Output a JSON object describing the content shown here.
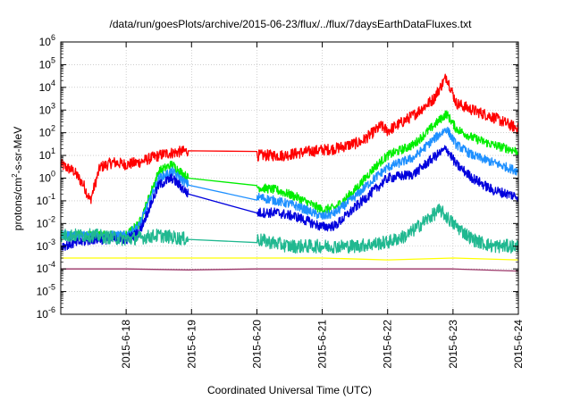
{
  "chart_data": {
    "type": "line",
    "title": "/data/run/goesPlots/archive/2015-06-23/flux/../flux/7daysEarthDataFluxes.txt",
    "xlabel": "Coordinated Universal Time (UTC)",
    "ylabel_parts": [
      "protons/cm",
      "2",
      "-s-sr-MeV"
    ],
    "x_unit": "days since 2015-06-17 00:00 UTC",
    "xlim": [
      0,
      7
    ],
    "x_ticks": [
      {
        "x": 1,
        "label": "2015-6-18"
      },
      {
        "x": 2,
        "label": "2015-6-19"
      },
      {
        "x": 3,
        "label": "2015-6-20"
      },
      {
        "x": 4,
        "label": "2015-6-21"
      },
      {
        "x": 5,
        "label": "2015-6-22"
      },
      {
        "x": 6,
        "label": "2015-6-23"
      },
      {
        "x": 7,
        "label": "2015-6-24"
      }
    ],
    "y_scale": "log",
    "ylim_exp": [
      -6,
      6
    ],
    "y_tick_exponents": [
      -6,
      -5,
      -4,
      -3,
      -2,
      -1,
      0,
      1,
      2,
      3,
      4,
      5,
      6
    ],
    "y_tick_base": "10",
    "grid": true,
    "legend": "none",
    "series": [
      {
        "color": "#ff0000",
        "noise": 0.25,
        "x": [
          0.0,
          0.2,
          0.35,
          0.45,
          0.6,
          0.8,
          1.0,
          1.2,
          1.4,
          1.6,
          1.95,
          3.0,
          3.4,
          3.8,
          4.2,
          4.6,
          4.9,
          5.0,
          5.4,
          5.7,
          5.9,
          6.05,
          6.3,
          6.6,
          7.0
        ],
        "y": [
          4,
          2,
          0.5,
          0.1,
          3,
          5,
          4,
          5,
          8,
          12,
          16,
          10,
          10,
          15,
          20,
          40,
          200,
          120,
          600,
          3000,
          30000,
          2000,
          1000,
          500,
          150
        ]
      },
      {
        "color": "#00ee00",
        "noise": 0.2,
        "x": [
          0.0,
          0.5,
          1.0,
          1.2,
          1.5,
          1.7,
          1.95,
          3.0,
          3.3,
          3.6,
          4.0,
          4.2,
          4.5,
          4.8,
          5.0,
          5.4,
          5.7,
          5.9,
          6.05,
          6.3,
          6.6,
          7.0
        ],
        "y": [
          0.003,
          0.003,
          0.003,
          0.01,
          2,
          4,
          1,
          0.4,
          0.3,
          0.15,
          0.04,
          0.05,
          0.3,
          3,
          10,
          30,
          200,
          700,
          150,
          60,
          30,
          15
        ]
      },
      {
        "color": "#1e90ff",
        "noise": 0.2,
        "x": [
          0.0,
          0.5,
          1.0,
          1.2,
          1.5,
          1.7,
          1.95,
          3.0,
          3.3,
          3.6,
          4.0,
          4.2,
          4.5,
          4.8,
          5.0,
          5.4,
          5.7,
          5.9,
          6.05,
          6.3,
          6.6,
          7.0
        ],
        "y": [
          0.003,
          0.003,
          0.003,
          0.008,
          1,
          2,
          0.5,
          0.15,
          0.1,
          0.06,
          0.02,
          0.03,
          0.15,
          1,
          3,
          8,
          50,
          150,
          30,
          10,
          5,
          2
        ]
      },
      {
        "color": "#0000dd",
        "noise": 0.22,
        "x": [
          0.0,
          0.5,
          1.0,
          1.2,
          1.5,
          1.7,
          1.95,
          3.0,
          3.3,
          3.6,
          4.0,
          4.2,
          4.5,
          4.8,
          5.0,
          5.4,
          5.7,
          5.9,
          6.05,
          6.3,
          6.6,
          7.0
        ],
        "y": [
          0.001,
          0.002,
          0.002,
          0.004,
          0.5,
          1,
          0.2,
          0.03,
          0.03,
          0.02,
          0.007,
          0.008,
          0.05,
          0.3,
          1,
          1.5,
          8,
          20,
          4,
          1,
          0.3,
          0.15
        ]
      },
      {
        "color": "#20b890",
        "noise": 0.3,
        "x": [
          0.0,
          0.5,
          1.0,
          1.5,
          1.95,
          3.0,
          3.5,
          4.0,
          4.5,
          5.0,
          5.3,
          5.6,
          5.8,
          6.0,
          6.3,
          6.6,
          7.0
        ],
        "y": [
          0.003,
          0.003,
          0.002,
          0.003,
          0.002,
          0.002,
          0.001,
          0.001,
          0.001,
          0.0015,
          0.003,
          0.015,
          0.04,
          0.01,
          0.002,
          0.001,
          0.001
        ]
      },
      {
        "color": "#ffff00",
        "noise": 0.2,
        "x": [
          0.0,
          1.0,
          1.95,
          3.0,
          4.0,
          5.0,
          6.0,
          7.0
        ],
        "y": [
          0.0003,
          0.0003,
          0.0003,
          0.0003,
          0.0003,
          0.00025,
          0.0003,
          0.00025
        ]
      },
      {
        "color": "#993366",
        "noise": 0.2,
        "x": [
          0.0,
          1.0,
          1.95,
          3.0,
          4.0,
          5.0,
          6.0,
          7.0
        ],
        "y": [
          0.0001,
          0.0001,
          9e-05,
          0.0001,
          0.0001,
          0.0001,
          0.0001,
          8e-05
        ]
      }
    ]
  }
}
